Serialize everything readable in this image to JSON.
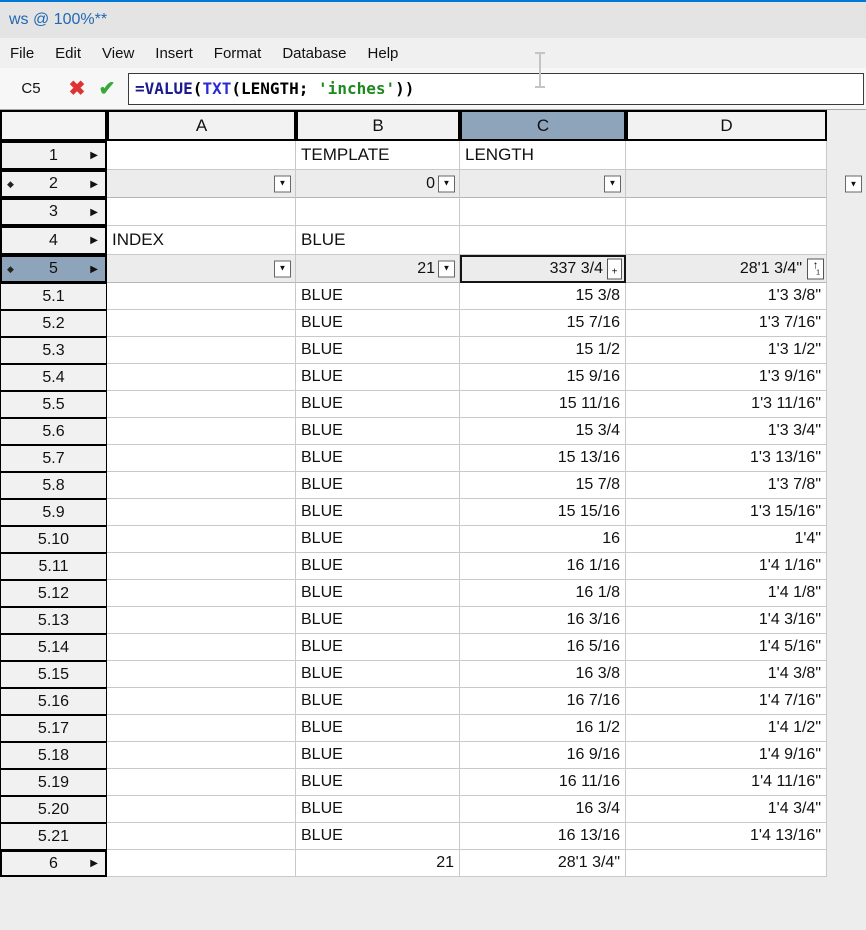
{
  "window": {
    "title": "ws @ 100%**"
  },
  "menu": {
    "items": [
      "File",
      "Edit",
      "View",
      "Insert",
      "Format",
      "Database",
      "Help"
    ]
  },
  "formula_bar": {
    "cell_reference": "C5",
    "formula_parts": [
      {
        "text": "=VALUE",
        "color": "#1b1b8f"
      },
      {
        "text": "(",
        "color": "#000000"
      },
      {
        "text": "TXT",
        "color": "#2b2bd6"
      },
      {
        "text": "(",
        "color": "#000000"
      },
      {
        "text": "LENGTH; ",
        "color": "#000000"
      },
      {
        "text": "'inches'",
        "color": "#1e8a1e"
      },
      {
        "text": "))",
        "color": "#000000"
      }
    ]
  },
  "icons": {
    "dropdown": "▼",
    "diamond": "◆",
    "row_arrow": "▶",
    "plus": "+",
    "up_arrow": "↑",
    "up_arrow_index": "1",
    "cancel": "✖",
    "accept": "✔"
  },
  "colors": {
    "selection": "#8da4ba",
    "accent_blue": "#2268b2",
    "cancel_red": "#dd3333",
    "accept_green": "#35a835",
    "top_edge": "#0078d7"
  },
  "grid": {
    "column_headers": {
      "a": "A",
      "b": "B",
      "c": "C",
      "d": "D"
    },
    "selected_column": "C",
    "selected_cell": "C5",
    "rows": {
      "r1": {
        "num": "1",
        "template_label": "TEMPLATE",
        "length_label": "LENGTH"
      },
      "r2": {
        "num": "2",
        "template_filter": "0"
      },
      "r3": {
        "num": "3"
      },
      "r4": {
        "num": "4",
        "index_label": "INDEX",
        "template_value": "BLUE"
      },
      "r5": {
        "num": "5",
        "template_count": "21",
        "length_inches": "337 3/4",
        "length_ftin": "28'1 3/4\""
      },
      "r6": {
        "num": "6",
        "template_count": "21",
        "length_value": "28'1 3/4\""
      }
    },
    "subrows": [
      {
        "num": "5.1",
        "template": "BLUE",
        "inches": "15 3/8",
        "ftin": "1'3 3/8\""
      },
      {
        "num": "5.2",
        "template": "BLUE",
        "inches": "15 7/16",
        "ftin": "1'3 7/16\""
      },
      {
        "num": "5.3",
        "template": "BLUE",
        "inches": "15 1/2",
        "ftin": "1'3 1/2\""
      },
      {
        "num": "5.4",
        "template": "BLUE",
        "inches": "15 9/16",
        "ftin": "1'3 9/16\""
      },
      {
        "num": "5.5",
        "template": "BLUE",
        "inches": "15 11/16",
        "ftin": "1'3 11/16\""
      },
      {
        "num": "5.6",
        "template": "BLUE",
        "inches": "15 3/4",
        "ftin": "1'3 3/4\""
      },
      {
        "num": "5.7",
        "template": "BLUE",
        "inches": "15 13/16",
        "ftin": "1'3 13/16\""
      },
      {
        "num": "5.8",
        "template": "BLUE",
        "inches": "15 7/8",
        "ftin": "1'3 7/8\""
      },
      {
        "num": "5.9",
        "template": "BLUE",
        "inches": "15 15/16",
        "ftin": "1'3 15/16\""
      },
      {
        "num": "5.10",
        "template": "BLUE",
        "inches": "16",
        "ftin": "1'4\""
      },
      {
        "num": "5.11",
        "template": "BLUE",
        "inches": "16 1/16",
        "ftin": "1'4 1/16\""
      },
      {
        "num": "5.12",
        "template": "BLUE",
        "inches": "16 1/8",
        "ftin": "1'4 1/8\""
      },
      {
        "num": "5.13",
        "template": "BLUE",
        "inches": "16 3/16",
        "ftin": "1'4 3/16\""
      },
      {
        "num": "5.14",
        "template": "BLUE",
        "inches": "16 5/16",
        "ftin": "1'4 5/16\""
      },
      {
        "num": "5.15",
        "template": "BLUE",
        "inches": "16 3/8",
        "ftin": "1'4 3/8\""
      },
      {
        "num": "5.16",
        "template": "BLUE",
        "inches": "16 7/16",
        "ftin": "1'4 7/16\""
      },
      {
        "num": "5.17",
        "template": "BLUE",
        "inches": "16 1/2",
        "ftin": "1'4 1/2\""
      },
      {
        "num": "5.18",
        "template": "BLUE",
        "inches": "16 9/16",
        "ftin": "1'4 9/16\""
      },
      {
        "num": "5.19",
        "template": "BLUE",
        "inches": "16 11/16",
        "ftin": "1'4 11/16\""
      },
      {
        "num": "5.20",
        "template": "BLUE",
        "inches": "16 3/4",
        "ftin": "1'4 3/4\""
      },
      {
        "num": "5.21",
        "template": "BLUE",
        "inches": "16 13/16",
        "ftin": "1'4 13/16\""
      }
    ]
  }
}
